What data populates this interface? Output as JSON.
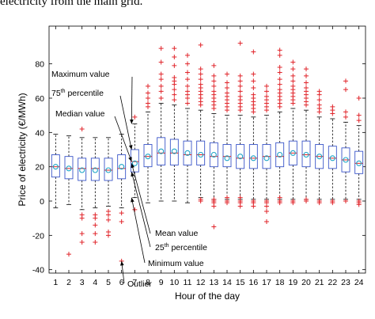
{
  "header": {
    "text": "electricity from the main grid."
  },
  "chart_data": {
    "type": "boxplot",
    "xlabel": "Hour of the day",
    "ylabel": "Price of electricity (€/MWh)",
    "xlim": [
      0.5,
      24.5
    ],
    "ylim": [
      -42,
      102
    ],
    "yticks": [
      -40,
      -20,
      0,
      20,
      40,
      60,
      80
    ],
    "categories": [
      "1",
      "2",
      "3",
      "4",
      "5",
      "6",
      "7",
      "8",
      "9",
      "10",
      "11",
      "12",
      "13",
      "14",
      "15",
      "16",
      "17",
      "18",
      "19",
      "20",
      "21",
      "22",
      "23",
      "24"
    ],
    "colors": {
      "box": "#3a55c9",
      "median": "#d22",
      "mean": "#19a3c6",
      "outlier": "#e0242a",
      "whisker": "#000000"
    },
    "boxes": [
      {
        "hour": 1,
        "min": -4,
        "q1": 14,
        "median": 20,
        "mean": 20,
        "q3": 27,
        "max": 39,
        "outliers": []
      },
      {
        "hour": 2,
        "min": -2,
        "q1": 13,
        "median": 19,
        "mean": 19,
        "q3": 26,
        "max": 38,
        "outliers": [
          -31
        ]
      },
      {
        "hour": 3,
        "min": -5,
        "q1": 12,
        "median": 19,
        "mean": 18,
        "q3": 25,
        "max": 37,
        "outliers": [
          -8,
          -10,
          -19,
          -24,
          42
        ]
      },
      {
        "hour": 4,
        "min": -4,
        "q1": 12,
        "median": 19,
        "mean": 18,
        "q3": 25,
        "max": 37,
        "outliers": [
          -8,
          -10,
          -14,
          -19,
          -24
        ]
      },
      {
        "hour": 5,
        "min": -3,
        "q1": 12,
        "median": 18,
        "mean": 18,
        "q3": 25,
        "max": 37,
        "outliers": [
          -6,
          -8,
          -11,
          -18,
          -20
        ]
      },
      {
        "hour": 6,
        "min": -4,
        "q1": 13,
        "median": 19,
        "mean": 20,
        "q3": 27,
        "max": 39,
        "outliers": [
          -7,
          -12,
          -35
        ]
      },
      {
        "hour": 7,
        "min": 2,
        "q1": 17,
        "median": 23,
        "mean": 22,
        "q3": 30,
        "max": 45,
        "outliers": [
          -5,
          49
        ]
      },
      {
        "hour": 8,
        "min": -1,
        "q1": 20,
        "median": 26,
        "mean": 26,
        "q3": 33,
        "max": 52,
        "outliers": [
          55,
          57,
          60,
          63,
          67
        ]
      },
      {
        "hour": 9,
        "min": 0,
        "q1": 21,
        "median": 28,
        "mean": 29,
        "q3": 37,
        "max": 57,
        "outliers": [
          60,
          64,
          67,
          71,
          74,
          81,
          89
        ]
      },
      {
        "hour": 10,
        "min": 0,
        "q1": 21,
        "median": 28,
        "mean": 29,
        "q3": 36,
        "max": 56,
        "outliers": [
          59,
          62,
          65,
          68,
          70,
          72,
          79,
          84,
          89
        ]
      },
      {
        "hour": 11,
        "min": -1,
        "q1": 21,
        "median": 27,
        "mean": 28,
        "q3": 35,
        "max": 54,
        "outliers": [
          57,
          60,
          62,
          64,
          67,
          71,
          75,
          80,
          85
        ]
      },
      {
        "hour": 12,
        "min": 2,
        "q1": 21,
        "median": 27,
        "mean": 27,
        "q3": 35,
        "max": 53,
        "outliers": [
          0,
          1,
          56,
          58,
          60,
          62,
          64,
          66,
          68,
          71,
          74,
          77,
          91
        ]
      },
      {
        "hour": 13,
        "min": 1,
        "q1": 20,
        "median": 26,
        "mean": 27,
        "q3": 34,
        "max": 51,
        "outliers": [
          0,
          -1,
          1,
          -3,
          -15,
          54,
          56,
          58,
          60,
          62,
          64,
          67,
          70,
          73,
          79
        ]
      },
      {
        "hour": 14,
        "min": 1,
        "q1": 20,
        "median": 26,
        "mean": 25,
        "q3": 33,
        "max": 50,
        "outliers": [
          0,
          -1,
          2,
          53,
          55,
          57,
          59,
          61,
          63,
          66,
          69,
          74
        ]
      },
      {
        "hour": 15,
        "min": 1,
        "q1": 19,
        "median": 25,
        "mean": 26,
        "q3": 33,
        "max": 50,
        "outliers": [
          0,
          -1,
          2,
          -3,
          53,
          55,
          57,
          59,
          61,
          64,
          67,
          70,
          73,
          92
        ]
      },
      {
        "hour": 16,
        "min": 1,
        "q1": 19,
        "median": 25,
        "mean": 25,
        "q3": 33,
        "max": 49,
        "outliers": [
          0,
          -1,
          -3,
          52,
          54,
          56,
          58,
          60,
          62,
          66,
          70,
          74,
          87
        ]
      },
      {
        "hour": 17,
        "min": 1,
        "q1": 19,
        "median": 26,
        "mean": 25,
        "q3": 33,
        "max": 50,
        "outliers": [
          0,
          -1,
          -3,
          -6,
          -12,
          53,
          55,
          57,
          59,
          61,
          64,
          67
        ]
      },
      {
        "hour": 18,
        "min": 1,
        "q1": 20,
        "median": 26,
        "mean": 27,
        "q3": 34,
        "max": 52,
        "outliers": [
          0,
          -1,
          2,
          55,
          57,
          59,
          61,
          63,
          65,
          68,
          71,
          75,
          78,
          85,
          88
        ]
      },
      {
        "hour": 19,
        "min": 1,
        "q1": 21,
        "median": 28,
        "mean": 28,
        "q3": 35,
        "max": 54,
        "outliers": [
          0,
          -1,
          57,
          59,
          61,
          63,
          65,
          67,
          70,
          73,
          77,
          81
        ]
      },
      {
        "hour": 20,
        "min": 1,
        "q1": 20,
        "median": 27,
        "mean": 27,
        "q3": 35,
        "max": 53,
        "outliers": [
          0,
          1,
          56,
          58,
          60,
          62,
          64,
          66,
          69,
          73,
          77
        ]
      },
      {
        "hour": 21,
        "min": 1,
        "q1": 19,
        "median": 26,
        "mean": 26,
        "q3": 33,
        "max": 49,
        "outliers": [
          0,
          -1,
          52,
          54,
          56,
          59,
          62,
          64
        ]
      },
      {
        "hour": 22,
        "min": 1,
        "q1": 19,
        "median": 25,
        "mean": 25,
        "q3": 32,
        "max": 48,
        "outliers": [
          0,
          -1,
          51,
          53,
          55
        ]
      },
      {
        "hour": 23,
        "min": 1,
        "q1": 17,
        "median": 24,
        "mean": 24,
        "q3": 31,
        "max": 46,
        "outliers": [
          0,
          49,
          52,
          65,
          70
        ]
      },
      {
        "hour": 24,
        "min": 1,
        "q1": 16,
        "median": 22,
        "mean": 22,
        "q3": 29,
        "max": 44,
        "outliers": [
          0,
          -1,
          -2,
          47,
          50,
          60
        ]
      }
    ],
    "annotations": [
      {
        "label": "Maximum value",
        "sup": "",
        "label_after": "",
        "at_hour": 7,
        "at_value": 45
      },
      {
        "label": "75",
        "sup": "th",
        "label_after": " percentile",
        "at_hour": 7,
        "at_value": 30
      },
      {
        "label": "Median value",
        "sup": "",
        "label_after": "",
        "at_hour": 7,
        "at_value": 23
      },
      {
        "label": "Mean value",
        "sup": "",
        "label_after": "",
        "at_hour": 7,
        "at_value": 22
      },
      {
        "label": "25",
        "sup": "th",
        "label_after": " percentile",
        "at_hour": 7,
        "at_value": 17
      },
      {
        "label": "Minimum value",
        "sup": "",
        "label_after": "",
        "at_hour": 7,
        "at_value": 2
      },
      {
        "label": "Outlier",
        "sup": "",
        "label_after": "",
        "at_hour": 6,
        "at_value": -35
      }
    ]
  }
}
